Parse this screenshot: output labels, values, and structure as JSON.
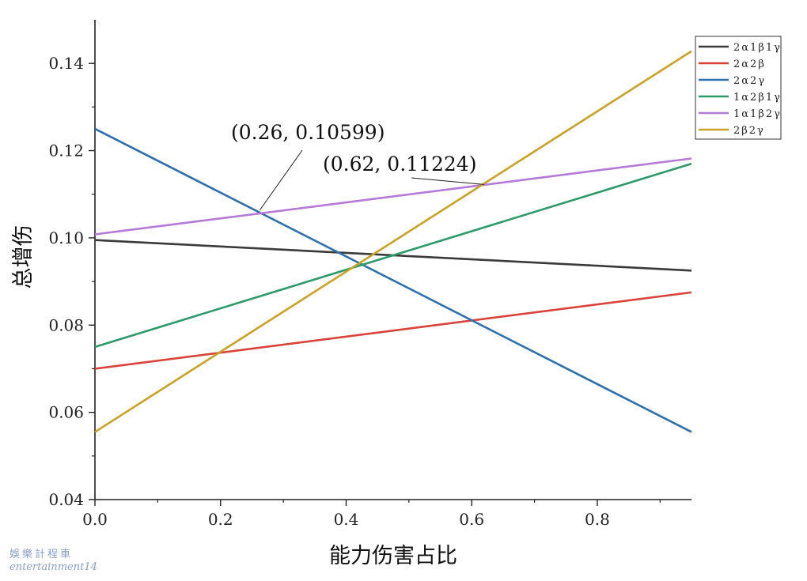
{
  "chart_data": {
    "type": "line",
    "xlabel": "能力伤害占比",
    "ylabel": "总增伤",
    "xlim": [
      0,
      0.95
    ],
    "ylim": [
      0.04,
      0.15
    ],
    "xticks": [
      0.0,
      0.2,
      0.4,
      0.6,
      0.8
    ],
    "xtick_labels": [
      "0.0",
      "0.2",
      "0.4",
      "0.6",
      "0.8"
    ],
    "yticks": [
      0.04,
      0.06,
      0.08,
      0.1,
      0.12,
      0.14
    ],
    "ytick_labels": [
      "0.04",
      "0.06",
      "0.08",
      "0.10",
      "0.12",
      "0.14"
    ],
    "grid": false,
    "legend_position": "top-right",
    "series": [
      {
        "name": "2α1β1γ",
        "color": "#3a3a3a",
        "x": [
          0,
          0.95
        ],
        "y": [
          0.0995,
          0.0925
        ]
      },
      {
        "name": "2α2β",
        "color": "#d9433a",
        "x": [
          0,
          0.95
        ],
        "y": [
          0.07,
          0.0875
        ]
      },
      {
        "name": "2α2γ",
        "color": "#2e6fad",
        "x": [
          0,
          0.95
        ],
        "y": [
          0.125,
          0.0555
        ]
      },
      {
        "name": "1α2β1γ",
        "color": "#2e9a6a",
        "x": [
          0,
          0.95
        ],
        "y": [
          0.075,
          0.117
        ]
      },
      {
        "name": "1α1β2γ",
        "color": "#b57ad8",
        "x": [
          0,
          0.95
        ],
        "y": [
          0.1008,
          0.1182
        ]
      },
      {
        "name": "2β2γ",
        "color": "#c9a227",
        "x": [
          0,
          0.95
        ],
        "y": [
          0.0555,
          0.1428
        ]
      }
    ],
    "annotations": [
      {
        "text": "(0.26,  0.10599)",
        "point": [
          0.26,
          0.10599
        ]
      },
      {
        "text": "(0.62,  0.11224)",
        "point": [
          0.62,
          0.11224
        ]
      }
    ]
  },
  "watermark": {
    "line1": "娛樂計程車",
    "line2": "entertainment14"
  }
}
